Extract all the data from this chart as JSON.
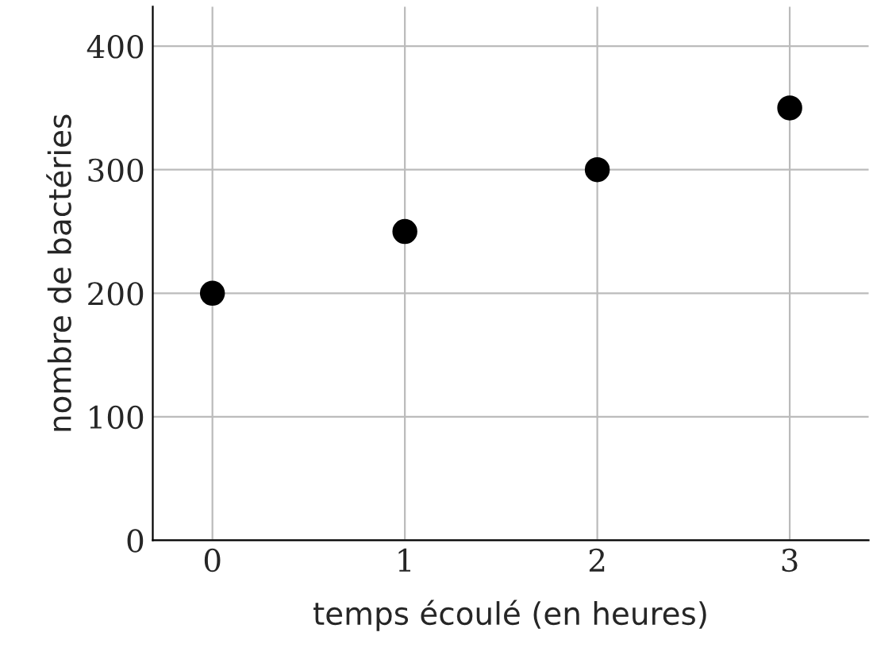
{
  "chart_data": {
    "type": "scatter",
    "xlabel": "temps écoulé (en heures)",
    "ylabel": "nombre de bactéries",
    "x": [
      0,
      1,
      2,
      3
    ],
    "series": [
      {
        "color": "#000000",
        "values": [
          200,
          250,
          300,
          350
        ]
      }
    ],
    "xlim": [
      -0.31,
      3.41
    ],
    "ylim": [
      0,
      432
    ],
    "xticks": [
      0,
      1,
      2,
      3
    ],
    "yticks": [
      0,
      100,
      200,
      300,
      400
    ],
    "grid": true,
    "marker": "circle",
    "legend": false
  }
}
